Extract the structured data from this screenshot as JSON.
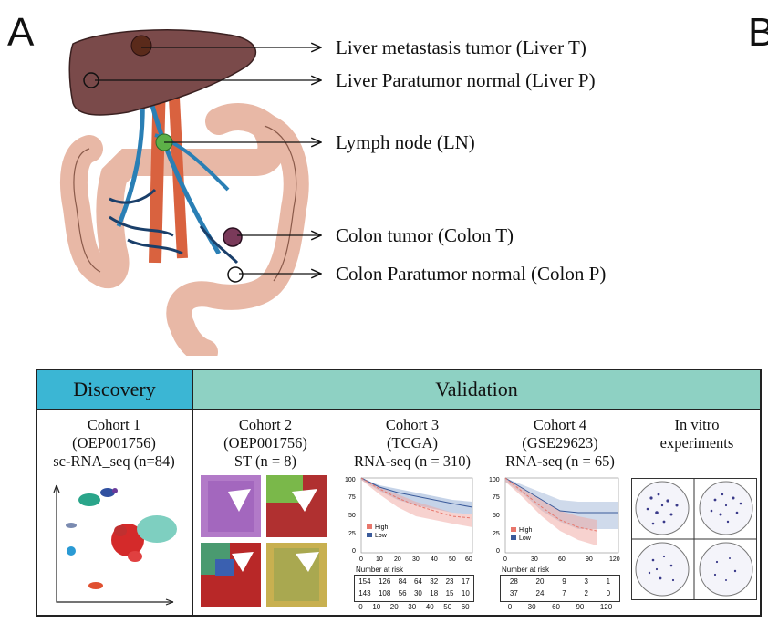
{
  "panel_a": {
    "letter": "A"
  },
  "panel_b": {
    "letter": "B"
  },
  "organ_labels": [
    "Liver metastasis tumor (Liver T)",
    "Liver Paratumor normal (Liver P)",
    "Lymph node (LN)",
    "Colon tumor (Colon T)",
    "Colon Paratumor normal (Colon P)"
  ],
  "table": {
    "discovery_header": "Discovery",
    "validation_header": "Validation",
    "discovery_color": "#3bb6d4",
    "validation_color": "#8ed1c3",
    "cohorts": [
      {
        "line1": "Cohort 1",
        "line2": "(OEP001756)",
        "line3": "sc-RNA_seq (n=84)"
      },
      {
        "line1": "Cohort 2",
        "line2": "(OEP001756)",
        "line3": "ST (n = 8)"
      },
      {
        "line1": "Cohort 3",
        "line2": "(TCGA)",
        "line3": "RNA-seq (n = 310)"
      },
      {
        "line1": "Cohort 4",
        "line2": "(GSE29623)",
        "line3": "RNA-seq (n = 65)"
      },
      {
        "line1": "In vitro",
        "line2": "experiments",
        "line3": ""
      }
    ]
  },
  "km_tcga": {
    "legend_high": "High",
    "legend_low": "Low",
    "y_ticks": [
      "100",
      "75",
      "50",
      "25",
      "0"
    ],
    "x_ticks": [
      "0",
      "10",
      "20",
      "30",
      "40",
      "50",
      "60"
    ],
    "risk_title": "Number at risk",
    "risk_high": [
      "154",
      "126",
      "84",
      "64",
      "32",
      "23",
      "17"
    ],
    "risk_low": [
      "143",
      "108",
      "56",
      "30",
      "18",
      "15",
      "10"
    ],
    "risk_x": [
      "0",
      "10",
      "20",
      "30",
      "40",
      "50",
      "60"
    ],
    "high_color": "#e8766b",
    "low_color": "#3a5a9a"
  },
  "km_gse": {
    "legend_high": "High",
    "legend_low": "Low",
    "y_ticks": [
      "100",
      "75",
      "50",
      "25",
      "0"
    ],
    "x_ticks": [
      "0",
      "30",
      "60",
      "90",
      "120"
    ],
    "risk_title": "Number at risk",
    "risk_high": [
      "28",
      "20",
      "9",
      "3",
      "1"
    ],
    "risk_low": [
      "37",
      "24",
      "7",
      "2",
      "0"
    ],
    "risk_x": [
      "0",
      "30",
      "60",
      "90",
      "120"
    ]
  }
}
